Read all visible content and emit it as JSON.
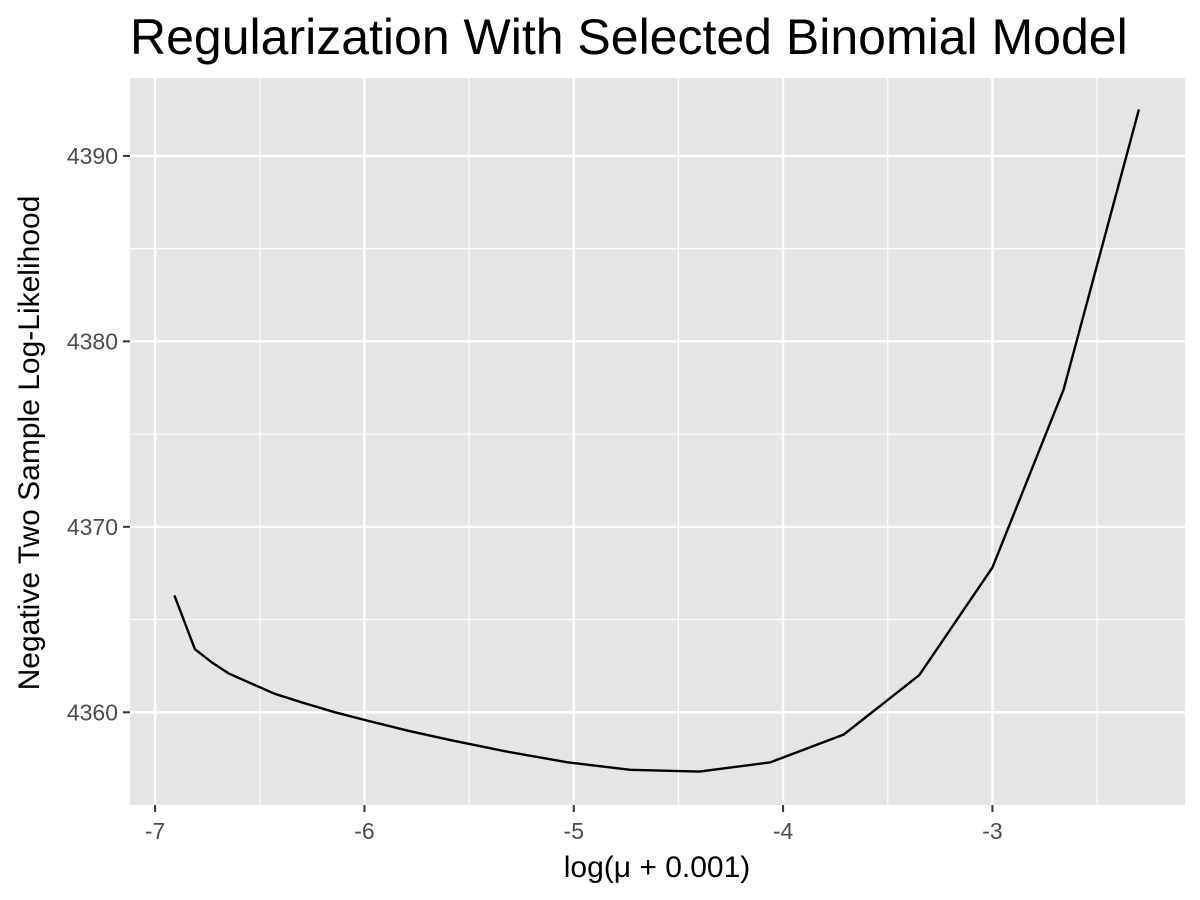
{
  "chart_data": {
    "type": "line",
    "title": "Regularization With Selected Binomial Model",
    "xlabel": "log(μ + 0.001)",
    "ylabel": "Negative Two Sample Log-Likelihood",
    "xlim": [
      -7.12,
      -2.08
    ],
    "ylim": [
      4355.0,
      4394.2
    ],
    "xticks": [
      -7,
      -6,
      -5,
      -4,
      -3
    ],
    "xtick_labels": [
      "-7",
      "-6",
      "-5",
      "-4",
      "-3"
    ],
    "yticks": [
      4360,
      4370,
      4380,
      4390
    ],
    "ytick_labels": [
      "4360",
      "4370",
      "4380",
      "4390"
    ],
    "grid": true,
    "background": "#e5e5e5",
    "grid_color": "#ffffff",
    "line_color": "#000000",
    "series": [
      {
        "x": [
          -6.908,
          -6.81,
          -6.73,
          -6.65,
          -6.55,
          -6.43,
          -6.29,
          -6.14,
          -5.97,
          -5.79,
          -5.59,
          -5.33,
          -5.03,
          -4.73,
          -4.4,
          -4.06,
          -3.71,
          -3.35,
          -3.0,
          -2.66,
          -2.3
        ],
        "y": [
          4366.3,
          4363.4,
          4362.7,
          4362.1,
          4361.6,
          4361.0,
          4360.5,
          4360.0,
          4359.5,
          4359.0,
          4358.5,
          4357.9,
          4357.3,
          4356.9,
          4356.8,
          4357.3,
          4358.8,
          4362.0,
          4367.8,
          4377.4,
          4392.5
        ]
      }
    ]
  }
}
